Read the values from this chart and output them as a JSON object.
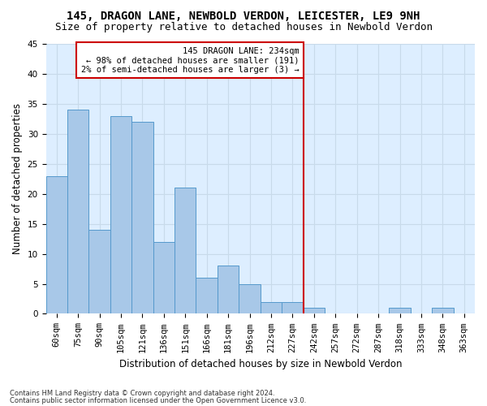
{
  "title": "145, DRAGON LANE, NEWBOLD VERDON, LEICESTER, LE9 9NH",
  "subtitle": "Size of property relative to detached houses in Newbold Verdon",
  "xlabel": "Distribution of detached houses by size in Newbold Verdon",
  "ylabel": "Number of detached properties",
  "bins": [
    "60sqm",
    "75sqm",
    "90sqm",
    "105sqm",
    "121sqm",
    "136sqm",
    "151sqm",
    "166sqm",
    "181sqm",
    "196sqm",
    "212sqm",
    "227sqm",
    "242sqm",
    "257sqm",
    "272sqm",
    "287sqm",
    "318sqm",
    "333sqm",
    "348sqm",
    "363sqm"
  ],
  "values": [
    23,
    34,
    14,
    33,
    32,
    12,
    21,
    6,
    8,
    5,
    2,
    2,
    1,
    0,
    0,
    0,
    1,
    0,
    1,
    0
  ],
  "bar_color": "#a8c8e8",
  "bar_edge_color": "#5599cc",
  "annotation_text_line1": "145 DRAGON LANE: 234sqm",
  "annotation_text_line2": "← 98% of detached houses are smaller (191)",
  "annotation_text_line3": "2% of semi-detached houses are larger (3) →",
  "annotation_box_color": "#ffffff",
  "annotation_box_edge": "#cc0000",
  "vline_color": "#cc0000",
  "vline_x_bin_index": 11.5,
  "ylim": [
    0,
    45
  ],
  "yticks": [
    0,
    5,
    10,
    15,
    20,
    25,
    30,
    35,
    40,
    45
  ],
  "grid_color": "#c8daea",
  "background_color": "#ddeeff",
  "footnote1": "Contains HM Land Registry data © Crown copyright and database right 2024.",
  "footnote2": "Contains public sector information licensed under the Open Government Licence v3.0.",
  "title_fontsize": 10,
  "subtitle_fontsize": 9,
  "axis_label_fontsize": 8.5,
  "tick_fontsize": 7.5
}
